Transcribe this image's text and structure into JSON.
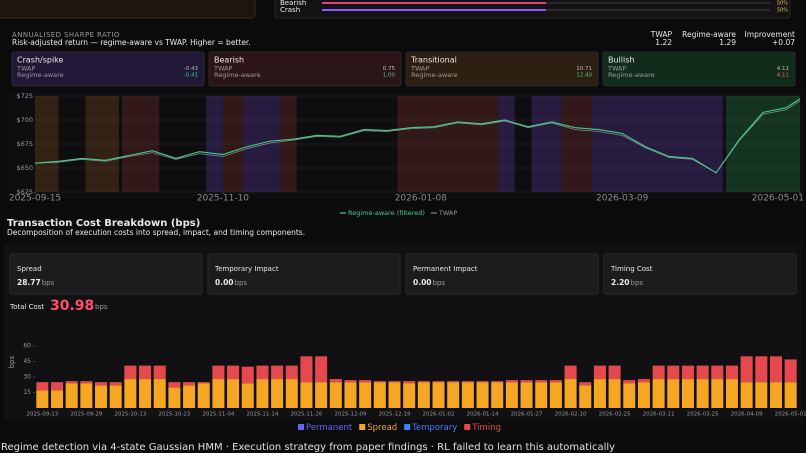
{
  "top_panel": {
    "xlim": [
      0,
      100
    ],
    "rows": [
      {
        "label": "Bearish",
        "value": 50,
        "value_label": "50%",
        "color": "#e0407a"
      },
      {
        "label": "Crash",
        "value": 50,
        "value_label": "50%",
        "color": "#8b5cf6"
      }
    ]
  },
  "sharpe": {
    "title": "ANNUALISED SHARPE RATIO",
    "subtitle": "Risk-adjusted return — regime-aware vs TWAP. Higher = better.",
    "summary": [
      {
        "label": "TWAP",
        "value": "1.22"
      },
      {
        "label": "Regime-aware",
        "value": "1.29"
      },
      {
        "label": "Improvement",
        "value": "+0.07"
      }
    ],
    "cards": [
      {
        "name": "Crash/spike",
        "color": "#2b1d48",
        "rows": [
          {
            "label": "TWAP",
            "value": "-0.43"
          },
          {
            "label": "Regime-aware",
            "value": "-0.41"
          }
        ]
      },
      {
        "name": "Bearish",
        "color": "#3a1a1c",
        "rows": [
          {
            "label": "TWAP",
            "value": "0.75"
          },
          {
            "label": "Regime-aware",
            "value": "1.00"
          }
        ]
      },
      {
        "name": "Transitional",
        "color": "#3a2614",
        "rows": [
          {
            "label": "TWAP",
            "value": "10.71"
          },
          {
            "label": "Regime-aware",
            "value": "12.40"
          }
        ]
      },
      {
        "name": "Bullish",
        "color": "#163a24",
        "rows": [
          {
            "label": "TWAP",
            "value": "4.11"
          },
          {
            "label": "Regime-aware",
            "value": "4.11"
          }
        ]
      }
    ]
  },
  "chart_data": [
    {
      "type": "line",
      "x": [
        "2025-09-15",
        "2025-09-22",
        "2025-09-29",
        "2025-10-06",
        "2025-10-13",
        "2025-10-20",
        "2025-10-27",
        "2025-11-03",
        "2025-11-10",
        "2025-11-17",
        "2025-11-24",
        "2025-12-01",
        "2025-12-08",
        "2025-12-15",
        "2025-12-22",
        "2025-12-29",
        "2026-01-05",
        "2026-01-12",
        "2026-01-19",
        "2026-01-26",
        "2026-02-02",
        "2026-02-09",
        "2026-02-16",
        "2026-02-23",
        "2026-03-02",
        "2026-03-09",
        "2026-03-16",
        "2026-03-23",
        "2026-03-30",
        "2026-04-06",
        "2026-04-13",
        "2026-04-20",
        "2026-04-27",
        "2026-05-01"
      ],
      "xlim": [
        "2025-09-15",
        "2026-05-01"
      ],
      "xticks": [
        "2025-09-15",
        "2025-11-10",
        "2026-01-08",
        "2026-03-09",
        "2026-05-01"
      ],
      "ylim": [
        625,
        725
      ],
      "yticks": [
        {
          "value": 625,
          "label": "$625"
        },
        {
          "value": 650,
          "label": "$650"
        },
        {
          "value": 675,
          "label": "$675"
        },
        {
          "value": 700,
          "label": "$700"
        },
        {
          "value": 725,
          "label": "$725"
        }
      ],
      "grid": true,
      "series": [
        {
          "name": "TWAP",
          "color": "#8a8a8a",
          "values": [
            655,
            656,
            659,
            657,
            662,
            666,
            659,
            665,
            662,
            670,
            676,
            679,
            683,
            682,
            689,
            688,
            691,
            692,
            697,
            695,
            699,
            692,
            697,
            690,
            688,
            684,
            671,
            661,
            659,
            645,
            679,
            706,
            711,
            720
          ]
        },
        {
          "name": "Regime-aware (filtered)",
          "color": "#3ecf8e",
          "values": [
            655,
            657,
            660,
            658,
            663,
            668,
            660,
            667,
            664,
            672,
            678,
            680,
            684,
            683,
            690,
            689,
            692,
            693,
            698,
            696,
            700,
            693,
            698,
            692,
            690,
            686,
            672,
            662,
            660,
            645,
            680,
            708,
            713,
            722
          ]
        }
      ],
      "regimes": [
        {
          "start": "2025-09-15",
          "end": "2025-09-22",
          "regime": "Transitional"
        },
        {
          "start": "2025-09-30",
          "end": "2025-10-10",
          "regime": "Transitional"
        },
        {
          "start": "2025-10-11",
          "end": "2025-10-22",
          "regime": "Bearish"
        },
        {
          "start": "2025-11-05",
          "end": "2025-11-10",
          "regime": "Crash/spike"
        },
        {
          "start": "2025-11-10",
          "end": "2025-11-16",
          "regime": "Bearish"
        },
        {
          "start": "2025-11-16",
          "end": "2025-11-27",
          "regime": "Crash/spike"
        },
        {
          "start": "2025-11-27",
          "end": "2025-12-02",
          "regime": "Bearish"
        },
        {
          "start": "2026-01-01",
          "end": "2026-01-31",
          "regime": "Bearish"
        },
        {
          "start": "2026-01-31",
          "end": "2026-02-05",
          "regime": "Crash/spike"
        },
        {
          "start": "2026-02-10",
          "end": "2026-02-19",
          "regime": "Crash/spike"
        },
        {
          "start": "2026-02-19",
          "end": "2026-02-28",
          "regime": "Bearish"
        },
        {
          "start": "2026-02-28",
          "end": "2026-04-08",
          "regime": "Crash/spike"
        },
        {
          "start": "2026-04-09",
          "end": "2026-05-01",
          "regime": "Bullish"
        }
      ]
    },
    {
      "type": "bar",
      "stacked": true,
      "y_label": "bps",
      "categories": [
        "2025-09-13",
        null,
        null,
        "2025-09-29",
        null,
        null,
        "2025-10-13",
        null,
        null,
        "2025-10-23",
        null,
        null,
        "2025-11-04",
        null,
        null,
        "2025-11-14",
        null,
        null,
        "2025-11-26",
        null,
        null,
        "2025-12-09",
        null,
        null,
        "2025-12-19",
        null,
        null,
        "2026-01-02",
        null,
        null,
        "2026-01-14",
        null,
        null,
        "2026-01-27",
        null,
        null,
        "2026-02-10",
        null,
        null,
        "2026-02-25",
        null,
        null,
        "2026-03-11",
        null,
        null,
        "2026-03-25",
        null,
        null,
        "2026-04-09",
        null,
        null,
        "2026-05-01"
      ],
      "ylim": [
        0,
        65
      ],
      "yticks": [
        15,
        30,
        45,
        60
      ],
      "series": [
        {
          "name": "Permanent",
          "color": "#6366f1",
          "values": [
            0,
            0,
            0,
            0,
            0,
            0,
            0,
            0,
            0,
            0,
            0,
            0,
            0,
            0,
            0,
            0,
            0,
            0,
            0,
            0,
            0,
            0,
            0,
            0,
            0,
            0,
            0,
            0,
            0,
            0,
            0,
            0,
            0,
            0,
            0,
            0,
            0,
            0,
            0,
            0,
            0,
            0,
            0,
            0,
            0,
            0,
            0,
            0,
            0,
            0,
            0,
            0
          ]
        },
        {
          "name": "Spread",
          "color": "#f5a623",
          "values": [
            17,
            17,
            24,
            24,
            22,
            22,
            28,
            28,
            28,
            20,
            22,
            24,
            28,
            28,
            24,
            28,
            28,
            28,
            25,
            25,
            25,
            25,
            25,
            25,
            25,
            24,
            25,
            25,
            25,
            25,
            25,
            25,
            25,
            25,
            25,
            25,
            28,
            22,
            28,
            28,
            24,
            25,
            28,
            28,
            28,
            28,
            28,
            28,
            25,
            25,
            25,
            25
          ]
        },
        {
          "name": "Temporary",
          "color": "#3b82f6",
          "values": [
            0,
            0,
            0,
            0,
            0,
            0,
            0,
            0,
            0,
            0,
            0,
            0,
            0,
            0,
            0,
            0,
            0,
            0,
            0,
            0,
            0,
            0,
            0,
            0,
            0,
            0,
            0,
            0,
            0,
            0,
            0,
            0,
            0,
            0,
            0,
            0,
            0,
            0,
            0,
            0,
            0,
            0,
            0,
            0,
            0,
            0,
            0,
            0,
            0,
            0,
            0,
            0
          ]
        },
        {
          "name": "Timing",
          "color": "#e5484d",
          "values": [
            8,
            8,
            2,
            2,
            3,
            3,
            13,
            13,
            13,
            5,
            3,
            1,
            13,
            13,
            16,
            13,
            13,
            13,
            25,
            25,
            3,
            2,
            2,
            1,
            1,
            2,
            1,
            1,
            1,
            1,
            1,
            1,
            2,
            2,
            2,
            2,
            13,
            3,
            13,
            13,
            3,
            3,
            13,
            13,
            13,
            13,
            13,
            13,
            25,
            25,
            25,
            22
          ]
        }
      ]
    }
  ],
  "costs": {
    "title": "Transaction Cost Breakdown (bps)",
    "subtitle": "Decomposition of execution costs into spread, impact, and timing components.",
    "unit": "bps",
    "cards": [
      {
        "label": "Spread",
        "value": "28.77"
      },
      {
        "label": "Temporary Impact",
        "value": "0.00"
      },
      {
        "label": "Permanent Impact",
        "value": "0.00"
      },
      {
        "label": "Timing Cost",
        "value": "2.20"
      }
    ],
    "total": {
      "label": "Total Cost",
      "value": "30.98"
    }
  },
  "footer": "Regime detection via 4-state Gaussian HMM · Execution strategy from paper findings · RL failed to learn this automatically"
}
